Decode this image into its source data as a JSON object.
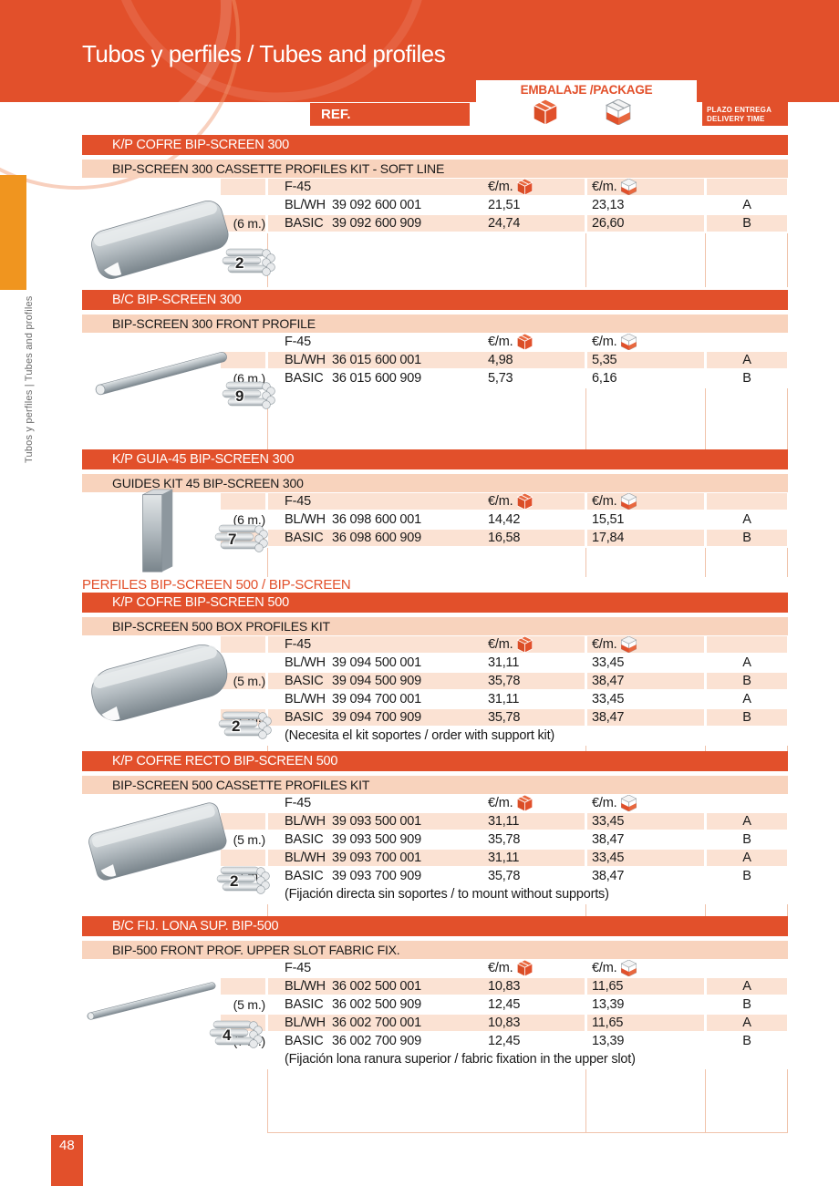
{
  "page": {
    "title": "Tubos y perfiles / Tubes and profiles",
    "sidebar_vertical_text": "Tubos y perfiles | Tubes and profiles",
    "page_number": "48",
    "ref_label": "REF.",
    "package_label": "EMBALAJE /PACKAGE",
    "delivery_label_line1": "PLAZO ENTREGA",
    "delivery_label_line2": "DELIVERY TIME",
    "divider_text": "PERFILES BIP-SCREEN 500 / BIP-SCREEN"
  },
  "colors": {
    "accent_orange": "#E2502B",
    "side_tab_amber": "#F0951F",
    "subtitle_bg": "#F8D3BD",
    "row_bg": "#FBE2D3"
  },
  "icons": {
    "package_full": "solid-orange-box-icon",
    "package_mixed": "half-filled-box-icon",
    "bundle": "tube-bundle-icon"
  },
  "sections": [
    {
      "title": "K/P COFRE BIP-SCREEN 300",
      "subtitle": "BIP-SCREEN 300 CASSETTE PROFILES KIT - SOFT LINE",
      "product_line": "F-45",
      "price_unit": "€/m.",
      "bundle_count": "2",
      "header_shaded": true,
      "note": "",
      "rows": [
        {
          "length": "",
          "finish": "BL/WH",
          "code": "39 092 600 001",
          "price_box": "21,51",
          "price_pallet": "23,13",
          "delivery": "A",
          "shaded": false
        },
        {
          "length": "(6 m.)",
          "finish": "BASIC",
          "code": "39 092 600 909",
          "price_box": "24,74",
          "price_pallet": "26,60",
          "delivery": "B",
          "shaded": true
        }
      ]
    },
    {
      "title": "B/C BIP-SCREEN 300",
      "subtitle": "BIP-SCREEN 300 FRONT PROFILE",
      "product_line": "F-45",
      "price_unit": "€/m.",
      "bundle_count": "9",
      "header_shaded": false,
      "note": "",
      "rows": [
        {
          "length": "",
          "finish": "BL/WH",
          "code": "36 015 600 001",
          "price_box": "4,98",
          "price_pallet": "5,35",
          "delivery": "A",
          "shaded": true
        },
        {
          "length": "(6 m.)",
          "finish": "BASIC",
          "code": "36 015 600 909",
          "price_box": "5,73",
          "price_pallet": "6,16",
          "delivery": "B",
          "shaded": false
        }
      ]
    },
    {
      "title": "K/P GUIA-45 BIP-SCREEN 300",
      "subtitle": "GUIDES KIT 45 BIP-SCREEN 300",
      "product_line": "F-45",
      "price_unit": "€/m.",
      "bundle_count": "7",
      "header_shaded": true,
      "note": "",
      "rows": [
        {
          "length": "(6 m.)",
          "finish": "BL/WH",
          "code": "36 098 600 001",
          "price_box": "14,42",
          "price_pallet": "15,51",
          "delivery": "A",
          "shaded": false
        },
        {
          "length": "",
          "finish": "BASIC",
          "code": "36 098 600 909",
          "price_box": "16,58",
          "price_pallet": "17,84",
          "delivery": "B",
          "shaded": true
        }
      ]
    },
    {
      "title": "K/P COFRE BIP-SCREEN 500",
      "subtitle": "BIP-SCREEN 500 BOX PROFILES KIT",
      "product_line": "F-45",
      "price_unit": "€/m.",
      "bundle_count": "2",
      "header_shaded": true,
      "note": "(Necesita el kit soportes / order with support kit)",
      "rows": [
        {
          "length": "",
          "finish": "BL/WH",
          "code": "39 094 500 001",
          "price_box": "31,11",
          "price_pallet": "33,45",
          "delivery": "A",
          "shaded": false
        },
        {
          "length": "(5 m.)",
          "finish": "BASIC",
          "code": "39 094 500 909",
          "price_box": "35,78",
          "price_pallet": "38,47",
          "delivery": "B",
          "shaded": true
        },
        {
          "length": "",
          "finish": "BL/WH",
          "code": "39 094 700 001",
          "price_box": "31,11",
          "price_pallet": "33,45",
          "delivery": "A",
          "shaded": false
        },
        {
          "length": "(7 m.)",
          "finish": "BASIC",
          "code": "39 094 700 909",
          "price_box": "35,78",
          "price_pallet": "38,47",
          "delivery": "B",
          "shaded": true
        }
      ]
    },
    {
      "title": "K/P COFRE RECTO BIP-SCREEN 500",
      "subtitle": "BIP-SCREEN 500 CASSETTE PROFILES KIT",
      "product_line": "F-45",
      "price_unit": "€/m.",
      "bundle_count": "2",
      "header_shaded": false,
      "note": "(Fijación directa sin soportes / to mount without supports)",
      "rows": [
        {
          "length": "",
          "finish": "BL/WH",
          "code": "39 093 500 001",
          "price_box": "31,11",
          "price_pallet": "33,45",
          "delivery": "A",
          "shaded": true
        },
        {
          "length": "(5 m.)",
          "finish": "BASIC",
          "code": "39 093 500 909",
          "price_box": "35,78",
          "price_pallet": "38,47",
          "delivery": "B",
          "shaded": false
        },
        {
          "length": "",
          "finish": "BL/WH",
          "code": "39 093 700 001",
          "price_box": "31,11",
          "price_pallet": "33,45",
          "delivery": "A",
          "shaded": true
        },
        {
          "length": "(7 m.)",
          "finish": "BASIC",
          "code": "39 093 700 909",
          "price_box": "35,78",
          "price_pallet": "38,47",
          "delivery": "B",
          "shaded": false
        }
      ]
    },
    {
      "title": "B/C FIJ. LONA SUP. BIP-500",
      "subtitle": "BIP-500 FRONT PROF. UPPER SLOT FABRIC FIX.",
      "product_line": "F-45",
      "price_unit": "€/m.",
      "bundle_count": "4",
      "header_shaded": false,
      "note": "(Fijación lona ranura superior / fabric fixation in the upper slot)",
      "rows": [
        {
          "length": "",
          "finish": "BL/WH",
          "code": "36 002 500 001",
          "price_box": "10,83",
          "price_pallet": "11,65",
          "delivery": "A",
          "shaded": true
        },
        {
          "length": "(5 m.)",
          "finish": "BASIC",
          "code": "36 002 500 909",
          "price_box": "12,45",
          "price_pallet": "13,39",
          "delivery": "B",
          "shaded": false
        },
        {
          "length": "",
          "finish": "BL/WH",
          "code": "36 002 700 001",
          "price_box": "10,83",
          "price_pallet": "11,65",
          "delivery": "A",
          "shaded": true
        },
        {
          "length": "(7 m.)",
          "finish": "BASIC",
          "code": "36 002 700 909",
          "price_box": "12,45",
          "price_pallet": "13,39",
          "delivery": "B",
          "shaded": false
        }
      ]
    }
  ]
}
